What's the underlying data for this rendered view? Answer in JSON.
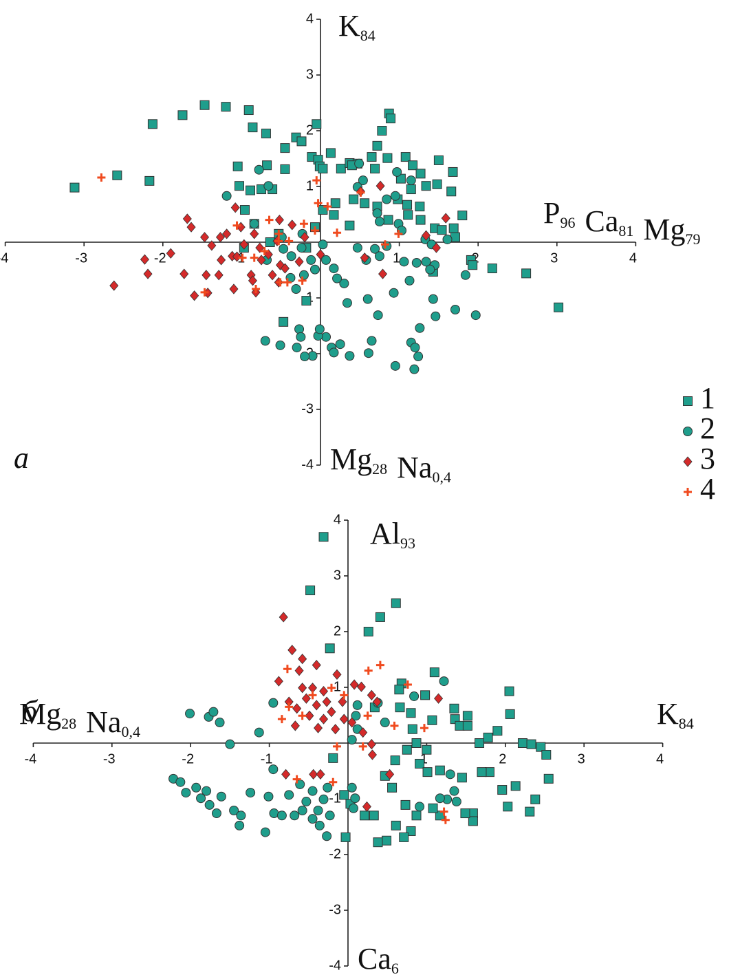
{
  "chart_data": [
    {
      "type": "scatter",
      "panel_label": "а",
      "axis_labels": {
        "top": [
          [
            "K",
            "84"
          ]
        ],
        "bottom": [
          [
            "Mg",
            "28"
          ],
          [
            "Na",
            "0,4"
          ]
        ],
        "right": [
          [
            "P",
            "96"
          ],
          [
            "Ca",
            "81"
          ],
          [
            "Mg",
            "79"
          ]
        ]
      },
      "xlim": [
        -4,
        4
      ],
      "ylim": [
        -4,
        4
      ],
      "xticks": [
        -4,
        -3,
        -2,
        -1,
        1,
        2,
        3,
        4
      ],
      "yticks": [
        -4,
        -3,
        -2,
        -1,
        1,
        2,
        3,
        4
      ],
      "series": [
        {
          "name": "1",
          "color": "#1f9e8c",
          "marker": "square",
          "x": [
            -3.12,
            -2.58,
            -2.17,
            -2.13,
            -1.75,
            -1.47,
            -1.2,
            -0.91,
            -0.86,
            -0.69,
            -0.05,
            0.87,
            0.89,
            0.78,
            -1.05,
            -0.45,
            -0.31,
            -0.24,
            -0.45,
            -0.68,
            -0.11,
            -0.03,
            0.13,
            0.26,
            0.37,
            0.47,
            0.72,
            0.65,
            0.85,
            1.08,
            1.5,
            1.68,
            1.17,
            1.27,
            1.02,
            1.15,
            1.34,
            1.48,
            1.66,
            0.98,
            1.1,
            1.26,
            1.11,
            1.27,
            1.45,
            1.54,
            1.69,
            1.8,
            1.71,
            0.86,
            0.72,
            0.56,
            0.42,
            0.19,
            0.03,
            0.17,
            0.37,
            -0.07,
            -0.61,
            -0.75,
            -0.89,
            -1.03,
            -0.96,
            -0.84,
            -0.53,
            1.91,
            2.18,
            2.61,
            3.02,
            -0.18,
            -0.47,
            -0.97,
            -0.64,
            -0.18,
            1.43,
            1.93,
            -0.01,
            0.03,
            0.4,
            0.69
          ],
          "values": [
            0.98,
            1.2,
            1.1,
            2.12,
            2.28,
            2.46,
            2.43,
            2.37,
            2.06,
            1.95,
            2.12,
            2.31,
            2.22,
            2.0,
            1.36,
            1.69,
            1.88,
            1.81,
            1.31,
            1.38,
            1.53,
            1.48,
            1.6,
            1.32,
            1.42,
            1.41,
            1.73,
            1.53,
            1.51,
            1.53,
            1.47,
            1.26,
            1.38,
            1.23,
            1.14,
            0.95,
            1.01,
            1.04,
            0.91,
            0.77,
            0.67,
            0.64,
            0.49,
            0.4,
            0.25,
            0.22,
            0.25,
            0.48,
            0.09,
            0.4,
            0.64,
            0.7,
            0.77,
            0.7,
            0.58,
            0.49,
            0.3,
            0.27,
            0.95,
            0.95,
            0.93,
            1.01,
            0.58,
            0.33,
            0.15,
            -0.32,
            -0.47,
            -0.56,
            -1.17,
            -1.05,
            -1.43,
            -0.1,
            0,
            -0.1,
            -0.53,
            -0.41,
            1.36,
            1.32,
            1.38,
            1.32
          ]
        },
        {
          "name": "2",
          "color": "#1f9e8c",
          "marker": "circle",
          "x": [
            -0.78,
            -0.66,
            -1.19,
            0.49,
            0.97,
            1.15,
            0.54,
            0.47,
            0.95,
            0.84,
            0.72,
            0.75,
            0.99,
            1.03,
            1.33,
            1.41,
            1.61,
            0.69,
            0.75,
            1.06,
            1.22,
            1.34,
            1.45,
            1.84,
            1.13,
            0.93,
            0.6,
            0.34,
            0.73,
            1.43,
            1.71,
            1.97,
            1.46,
            1.26,
            1.15,
            1.2,
            1.24,
            0.95,
            1.19,
            0.65,
            0.61,
            0.37,
            0.14,
            0.07,
            -0.03,
            0.25,
            0.17,
            -0.1,
            -0.2,
            -0.3,
            -0.51,
            -0.7,
            -0.27,
            -0.25,
            -0.01,
            0.3,
            0.21,
            0.17,
            0.07,
            -0.07,
            -0.31,
            -0.38,
            -0.21,
            -0.12,
            -0.37,
            -0.47,
            -0.24,
            0.03,
            -0.23,
            -0.84,
            -0.68,
            -0.49,
            0.58,
            0.47,
            0.84,
            1.39
          ],
          "values": [
            1.3,
            1.01,
            0.83,
            1.41,
            1.26,
            1.11,
            1.11,
            0.99,
            0.83,
            0.77,
            0.52,
            0.37,
            0.33,
            0.21,
            0.05,
            -0.04,
            0.05,
            -0.12,
            -0.25,
            -0.35,
            -0.37,
            -0.35,
            -0.41,
            -0.59,
            -0.69,
            -0.91,
            -1.02,
            -1.09,
            -1.31,
            -1.02,
            -1.21,
            -1.31,
            -1.33,
            -1.54,
            -1.8,
            -1.89,
            -2.05,
            -2.22,
            -2.28,
            -1.77,
            -1.99,
            -2.04,
            -1.89,
            -1.7,
            -1.68,
            -1.83,
            -1.98,
            -2.04,
            -2.05,
            -1.89,
            -1.85,
            -1.77,
            -1.56,
            -1.7,
            -1.56,
            -0.74,
            -0.65,
            -0.47,
            -0.32,
            -0.49,
            -0.84,
            -0.64,
            -0.59,
            -0.32,
            -0.25,
            -0.12,
            -0.1,
            -0.04,
            0.15,
            0.33,
            -0.32,
            0.09,
            -0.32,
            -0.1,
            -0.07,
            -0.49
          ]
        },
        {
          "name": "3",
          "color": "#d42a2a",
          "marker": "diamond",
          "x": [
            -2.62,
            -2.23,
            -2.19,
            -1.9,
            -1.69,
            -1.64,
            -1.73,
            -1.6,
            -1.43,
            -1.47,
            -1.38,
            -1.27,
            -1.26,
            -1.19,
            -1.08,
            -1.01,
            -0.97,
            -1.12,
            -1.06,
            -1.1,
            -0.82,
            -0.88,
            -0.75,
            -0.77,
            -0.84,
            -0.66,
            -0.55,
            -0.52,
            -0.36,
            -0.51,
            -0.53,
            -0.45,
            -0.27,
            -0.2,
            0,
            0.56,
            0.79,
            0.76,
            0.51,
            1.59,
            1.47,
            1.34,
            -1.45,
            -1.29,
            -0.86,
            -0.61
          ],
          "values": [
            -0.78,
            -0.31,
            -0.57,
            -0.2,
            0.42,
            0.27,
            -0.57,
            -0.96,
            -0.91,
            0.09,
            -0.06,
            0.09,
            -0.32,
            0.15,
            0.62,
            0.27,
            -0.04,
            -0.25,
            -0.26,
            -0.84,
            -0.9,
            -0.59,
            -0.32,
            -0.1,
            0.15,
            -0.22,
            0.02,
            0.4,
            0.31,
            -0.41,
            -0.72,
            -0.47,
            -0.35,
            0.09,
            -0.22,
            -0.28,
            -0.57,
            1.01,
            0.91,
            0.43,
            -0.1,
            0.12,
            -0.59,
            -0.59,
            -0.69,
            -0.59
          ]
        },
        {
          "name": "4",
          "color": "#f04a1e",
          "marker": "plus",
          "x": [
            -2.78,
            -1.47,
            -1.06,
            -0.65,
            -0.53,
            -0.21,
            -0.07,
            -0.05,
            -0.03,
            0.09,
            0.21,
            0.51,
            0.99,
            -0.99,
            -0.84,
            -0.71,
            -0.51,
            -0.42,
            -0.23,
            -0.82,
            -0.53,
            -0.4,
            0.82
          ],
          "values": [
            1.16,
            -0.9,
            0.3,
            0.4,
            0.15,
            0.33,
            0.21,
            1.11,
            0.7,
            0.64,
            0.17,
            0.89,
            0.15,
            -0.28,
            -0.28,
            -0.16,
            -0.72,
            -0.72,
            -0.69,
            -0.84,
            0.02,
            0.02,
            -0.04
          ]
        }
      ]
    },
    {
      "type": "scatter",
      "panel_label": "б",
      "axis_labels": {
        "top": [
          [
            "Al",
            "93"
          ]
        ],
        "bottom": [
          [
            "Ca",
            "6"
          ]
        ],
        "left": [
          [
            "Mg",
            "28"
          ],
          [
            "Na",
            "0,4"
          ]
        ],
        "right": [
          [
            "K",
            "84"
          ]
        ]
      },
      "xlim": [
        -4,
        4
      ],
      "ylim": [
        -4,
        4
      ],
      "xticks": [
        -4,
        -3,
        -2,
        -1,
        1,
        2,
        3,
        4
      ],
      "yticks": [
        -4,
        -3,
        -2,
        -1,
        1,
        2,
        3,
        4
      ],
      "series": [
        {
          "color": "#1f9e8c",
          "marker": "square",
          "x": [
            -0.31,
            -0.48,
            -0.23,
            0.26,
            0.41,
            0.61,
            1.1,
            0.68,
            0.65,
            0.98,
            1.07,
            1.35,
            1.36,
            1.42,
            1.52,
            1.52,
            1.67,
            1.78,
            1.9,
            2.05,
            2.06,
            2.22,
            2.33,
            2.45,
            2.52,
            2.55,
            2.38,
            2.31,
            2.13,
            2.03,
            1.96,
            1.8,
            1.7,
            1.59,
            1.59,
            1.49,
            1.45,
            1.17,
            1.08,
            0.87,
            0.8,
            0.71,
            0.49,
            0.38,
            0.61,
            0.73,
            0.56,
            0.47,
            0.6,
            0.75,
            0.87,
            1.0,
            0.91,
            1.01,
            1.17,
            0.82,
            0.66,
            0.8,
            0.34,
            0.21,
            -0.03,
            -0.19,
            0.33,
            -0.05,
            0.03
          ],
          "values": [
            3.7,
            2.74,
            1.7,
            2.0,
            2.26,
            2.51,
            1.27,
            1.07,
            0.96,
            0.86,
            0.41,
            0.62,
            0.43,
            0.31,
            0.49,
            0.31,
            0,
            0.1,
            0.22,
            0.93,
            0.52,
            0,
            -0.02,
            -0.07,
            -0.21,
            -0.64,
            -1.01,
            -1.23,
            -0.77,
            -1.14,
            -0.84,
            -0.52,
            -0.52,
            -1.26,
            -1.4,
            -1.26,
            -0.62,
            -1.3,
            -1.17,
            -1.3,
            -1.58,
            -1.69,
            -1.75,
            -1.78,
            -1.48,
            -1.11,
            -0.8,
            -0.59,
            -0.31,
            -0.12,
            0,
            -0.12,
            -0.37,
            -0.52,
            -0.49,
            0.25,
            0.64,
            0.54,
            0.64,
            -1.3,
            -1.69,
            -0.27,
            -1.3,
            -0.93,
            -1.09
          ]
        },
        {
          "color": "#1f9e8c",
          "marker": "circle",
          "x": [
            -2.01,
            -1.77,
            -1.71,
            -1.63,
            -1.5,
            -1.13,
            -0.95,
            -2.22,
            -2.13,
            -2.06,
            -1.93,
            -1.87,
            -1.8,
            -1.76,
            -1.67,
            -1.61,
            -1.45,
            -1.36,
            -1.38,
            -1.24,
            -1.01,
            -1.05,
            -0.94,
            -0.84,
            -0.68,
            -0.58,
            -0.53,
            -0.45,
            -0.38,
            -0.31,
            -0.26,
            -0.27,
            -0.36,
            -0.23,
            0.05,
            0.07,
            0.09,
            0.05,
            0.1,
            0.12,
            0.38,
            0.47,
            0.12,
            0.84,
            1.22,
            1.3,
            1.26,
            1.35,
            1.38,
            1.17,
            0.91,
            -0.75,
            -0.61,
            -0.45,
            -0.95
          ],
          "values": [
            0.53,
            0.47,
            0.56,
            0.37,
            -0.02,
            0.19,
            0.72,
            -0.64,
            -0.7,
            -0.89,
            -0.8,
            -0.99,
            -0.86,
            -1.11,
            -1.26,
            -0.96,
            -1.21,
            -1.3,
            -1.48,
            -0.89,
            -0.96,
            -1.6,
            -1.26,
            -1.3,
            -1.3,
            -1.21,
            -1.05,
            -1.36,
            -1.21,
            -1.01,
            -0.8,
            -1.67,
            -1.48,
            -1.3,
            -0.8,
            -1.17,
            -0.99,
            0.06,
            0.49,
            0.68,
            0.72,
            0.37,
            0.25,
            0.84,
            1.11,
            -0.56,
            -1.01,
            -0.86,
            -1.05,
            -0.99,
            -1.14,
            -0.93,
            -0.74,
            -0.86,
            -0.47
          ]
        },
        {
          "color": "#d42a2a",
          "marker": "diamond",
          "x": [
            -0.82,
            -0.71,
            -0.58,
            -0.4,
            -0.62,
            -0.88,
            -0.58,
            -0.45,
            -0.31,
            -0.14,
            0.08,
            0.17,
            0.3,
            0.37,
            -0.75,
            -0.65,
            -0.53,
            -0.4,
            -0.27,
            -0.21,
            -0.07,
            -0.05,
            -0.31,
            -0.49,
            -0.67,
            -0.38,
            -0.16,
            0.19,
            0.3,
            0.31,
            -0.79,
            -0.44,
            -0.35,
            0.24,
            0.53,
            1.15,
            0.05
          ],
          "values": [
            2.26,
            1.67,
            1.51,
            1.4,
            1.3,
            1.11,
            0.99,
            0.99,
            0.93,
            1.23,
            1.05,
            1.01,
            0.86,
            0.74,
            0.74,
            0.62,
            0.8,
            0.68,
            0.74,
            0.56,
            0.74,
            0.43,
            0.43,
            0.49,
            0.31,
            0.27,
            0.25,
            0.19,
            -0.02,
            -0.21,
            -0.56,
            -0.56,
            -0.56,
            -1.14,
            -0.56,
            0.8,
            0.37
          ]
        },
        {
          "color": "#f04a1e",
          "marker": "plus",
          "x": [
            -0.77,
            0.41,
            0.26,
            0.76,
            -0.84,
            -0.75,
            -0.45,
            -0.21,
            -0.05,
            0.59,
            0.97,
            -0.65,
            -0.14,
            0.19,
            -0.19,
            1.22,
            1.24,
            -0.58,
            0.25
          ],
          "values": [
            1.33,
            1.4,
            1.3,
            1.05,
            0.43,
            0.65,
            0.86,
            0.99,
            0.86,
            0.31,
            0.27,
            -0.65,
            -0.06,
            -0.06,
            -0.7,
            -1.23,
            -1.38,
            0.49,
            0.49
          ]
        }
      ]
    }
  ]
}
